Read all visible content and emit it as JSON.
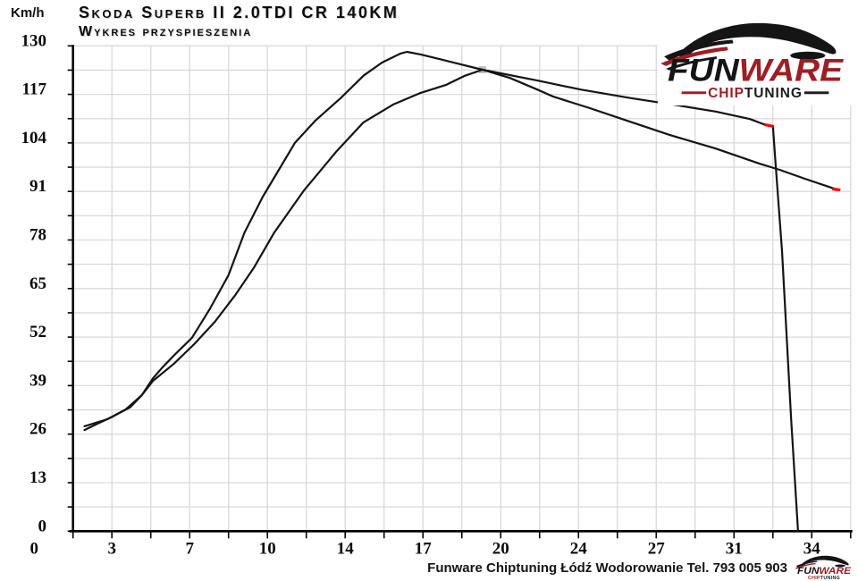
{
  "header": {
    "y_axis_unit": "Km/h",
    "title": "Skoda Superb II 2.0TDI CR 140KM",
    "subtitle": "Wykres przyspieszenia"
  },
  "footer": {
    "attribution": "Funware Chiptuning Łódź Wodorowanie Tel. 793 005 903"
  },
  "logo": {
    "brand_part1": "FUN",
    "brand_part2": "WARE",
    "tagline_part1": "CHIP",
    "tagline_part2": "TUNING",
    "colors": {
      "red": "#a01d22",
      "black": "#161616"
    }
  },
  "chart_data": {
    "type": "line",
    "title": "Skoda Superb II 2.0TDI CR 140KM",
    "subtitle": "Wykres przyspieszenia",
    "ylabel": "Km/h",
    "xlabel": "",
    "ylim": [
      0,
      130
    ],
    "xlim": [
      1.7,
      35.7
    ],
    "y_grid_step": 6.5,
    "x_grid_step": 1.7,
    "grid": true,
    "legend": "none",
    "colors": {
      "curve": "#141414",
      "grid": "#d9d9d9",
      "axis": "#000000",
      "end_marker": "#ff0000"
    },
    "y_ticks": [
      130,
      117,
      104,
      91,
      78,
      65,
      52,
      39,
      26,
      13,
      0
    ],
    "x_ticks": [
      {
        "label": "0",
        "t": 0
      },
      {
        "label": "3",
        "t": 3.4
      },
      {
        "label": "7",
        "t": 6.8
      },
      {
        "label": "10",
        "t": 10.2
      },
      {
        "label": "14",
        "t": 13.6
      },
      {
        "label": "17",
        "t": 17
      },
      {
        "label": "20",
        "t": 20.4
      },
      {
        "label": "24",
        "t": 23.8
      },
      {
        "label": "27",
        "t": 27.2
      },
      {
        "label": "31",
        "t": 30.6
      },
      {
        "label": "34",
        "t": 34
      }
    ],
    "series": [
      {
        "name": "run_1",
        "color": "#141414",
        "points": [
          [
            2.2,
            27.1
          ],
          [
            2.8,
            28.9
          ],
          [
            3.4,
            30.6
          ],
          [
            4.0,
            32.6
          ],
          [
            4.7,
            36.4
          ],
          [
            5.2,
            41.0
          ],
          [
            5.6,
            43.8
          ],
          [
            6.1,
            47.0
          ],
          [
            6.9,
            51.8
          ],
          [
            7.7,
            59.7
          ],
          [
            8.5,
            68.6
          ],
          [
            9.2,
            80.0
          ],
          [
            10.0,
            89.6
          ],
          [
            10.7,
            96.8
          ],
          [
            11.4,
            104.0
          ],
          [
            12.3,
            110.0
          ],
          [
            13.4,
            116.0
          ],
          [
            14.4,
            122.0
          ],
          [
            15.2,
            125.5
          ],
          [
            16.0,
            127.9
          ],
          [
            16.3,
            128.4
          ],
          [
            16.9,
            127.7
          ],
          [
            17.9,
            126.2
          ],
          [
            19.6,
            123.6
          ],
          [
            22.0,
            120.7
          ],
          [
            23.9,
            118.3
          ],
          [
            26.1,
            116.0
          ],
          [
            28.2,
            114.0
          ],
          [
            29.8,
            112.4
          ],
          [
            31.3,
            110.4
          ],
          [
            31.9,
            109.0
          ],
          [
            32.3,
            108.5
          ],
          [
            32.4,
            100.0
          ],
          [
            32.7,
            75.0
          ],
          [
            33.1,
            30.0
          ],
          [
            33.4,
            0.0
          ]
        ]
      },
      {
        "name": "run_2",
        "color": "#141414",
        "points": [
          [
            2.2,
            28.1
          ],
          [
            3.2,
            30.0
          ],
          [
            4.2,
            33.2
          ],
          [
            4.7,
            36.4
          ],
          [
            5.2,
            40.3
          ],
          [
            6.1,
            44.8
          ],
          [
            7.0,
            50.1
          ],
          [
            7.9,
            56.1
          ],
          [
            8.8,
            63.3
          ],
          [
            9.6,
            70.5
          ],
          [
            10.5,
            80.0
          ],
          [
            11.8,
            91.3
          ],
          [
            13.2,
            101.6
          ],
          [
            14.4,
            109.5
          ],
          [
            15.7,
            114.3
          ],
          [
            16.9,
            117.4
          ],
          [
            18.0,
            119.5
          ],
          [
            18.8,
            121.9
          ],
          [
            19.6,
            123.6
          ],
          [
            20.8,
            121.4
          ],
          [
            22.0,
            118.3
          ],
          [
            22.7,
            116.4
          ],
          [
            24.3,
            113.3
          ],
          [
            25.9,
            110.0
          ],
          [
            27.8,
            106.1
          ],
          [
            29.8,
            102.5
          ],
          [
            31.7,
            98.5
          ],
          [
            32.6,
            96.8
          ],
          [
            33.7,
            94.4
          ],
          [
            35.1,
            91.5
          ]
        ]
      }
    ],
    "end_markers": [
      {
        "series": "run_1",
        "color": "#ff0000",
        "from": [
          31.93,
          108.9
        ],
        "to": [
          32.35,
          108.4
        ]
      },
      {
        "series": "run_2",
        "color": "#ff0000",
        "from": [
          34.9,
          91.7
        ],
        "to": [
          35.25,
          91.4
        ]
      }
    ],
    "crossing_marker": {
      "t": 19.6,
      "v": 123.6,
      "size": 8,
      "color": "#b5b5b5"
    }
  }
}
